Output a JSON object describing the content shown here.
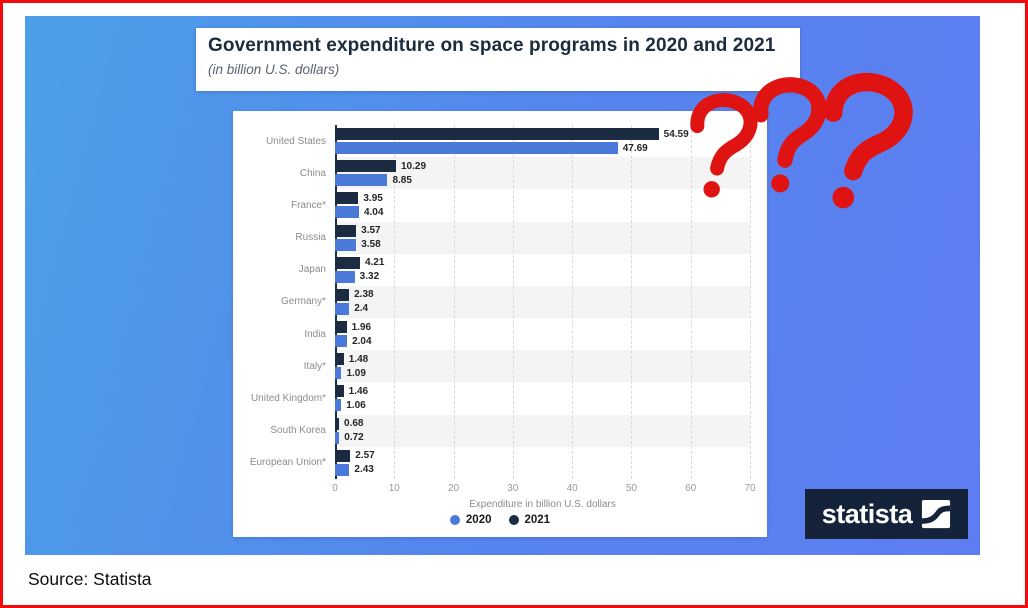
{
  "page": {
    "source_label": "Source: Statista"
  },
  "slide": {
    "title": "Government expenditure on space programs in 2020 and 2021",
    "subtitle": "(in billion U.S. dollars)",
    "logo_text": "statista",
    "annotation": {
      "text": "???",
      "style": "hand-drawn marker question marks",
      "color": "#e01313"
    }
  },
  "chart_data": {
    "type": "bar",
    "orientation": "horizontal",
    "title": "Government expenditure on space programs in 2020 and 2021",
    "subtitle": "(in billion U.S. dollars)",
    "xlabel": "Expenditure in billion U.S. dollars",
    "xlim": [
      0,
      70
    ],
    "xticks": [
      0,
      10,
      20,
      30,
      40,
      50,
      60,
      70
    ],
    "grid": "dashed-vertical",
    "row_striping": true,
    "categories": [
      "United States",
      "China",
      "France*",
      "Russia",
      "Japan",
      "Germany*",
      "India",
      "Italy*",
      "United Kingdom*",
      "South Korea",
      "European Union*"
    ],
    "series": [
      {
        "name": "2021",
        "color": "#1b2b41",
        "values": [
          54.59,
          10.29,
          3.95,
          3.57,
          4.21,
          2.38,
          1.96,
          1.48,
          1.46,
          0.68,
          2.57
        ]
      },
      {
        "name": "2020",
        "color": "#4a79d9",
        "values": [
          47.69,
          8.85,
          4.04,
          3.58,
          3.32,
          2.4,
          2.04,
          1.09,
          1.06,
          0.72,
          2.43
        ]
      }
    ],
    "bar_order_top_to_bottom": [
      "2021",
      "2020"
    ],
    "legend_order": [
      "2020",
      "2021"
    ],
    "legend_position": "bottom"
  }
}
